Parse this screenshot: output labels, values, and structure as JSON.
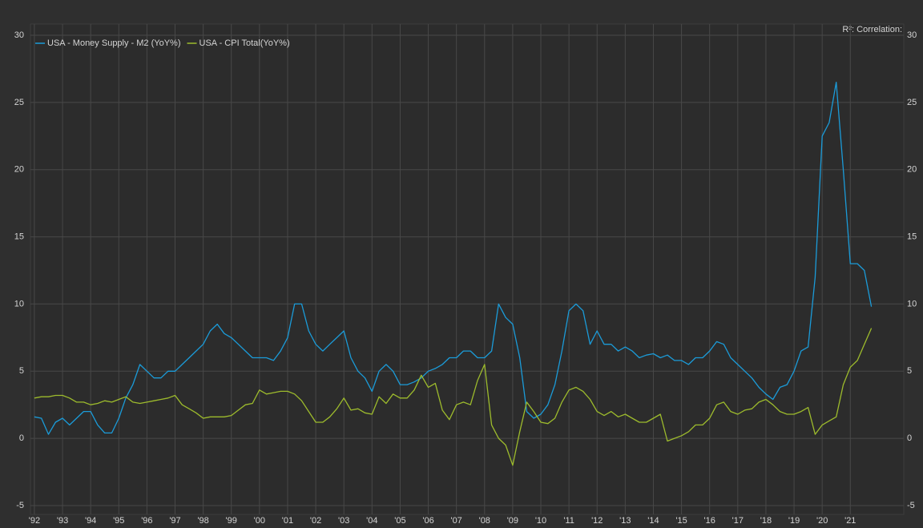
{
  "chart_data": {
    "type": "line",
    "annotation": "R²: Correlation:",
    "x": [
      1992.5,
      1992.75,
      1993,
      1993.25,
      1993.5,
      1993.75,
      1994,
      1994.25,
      1994.5,
      1994.75,
      1995,
      1995.25,
      1995.5,
      1995.75,
      1996,
      1996.25,
      1996.5,
      1996.75,
      1997,
      1997.25,
      1997.5,
      1997.75,
      1998,
      1998.25,
      1998.5,
      1998.75,
      1999,
      1999.25,
      1999.5,
      1999.75,
      2000,
      2000.25,
      2000.5,
      2000.75,
      2001,
      2001.25,
      2001.5,
      2001.75,
      2002,
      2002.25,
      2002.5,
      2002.75,
      2003,
      2003.25,
      2003.5,
      2003.75,
      2004,
      2004.25,
      2004.5,
      2004.75,
      2005,
      2005.25,
      2005.5,
      2005.75,
      2006,
      2006.25,
      2006.5,
      2006.75,
      2007,
      2007.25,
      2007.5,
      2007.75,
      2008,
      2008.25,
      2008.5,
      2008.75,
      2009,
      2009.25,
      2009.5,
      2009.75,
      2010,
      2010.25,
      2010.5,
      2010.75,
      2011,
      2011.25,
      2011.5,
      2011.75,
      2012,
      2012.25,
      2012.5,
      2012.75,
      2013,
      2013.25,
      2013.5,
      2013.75,
      2014,
      2014.25,
      2014.5,
      2014.75,
      2015,
      2015.25,
      2015.5,
      2015.75,
      2016,
      2016.25,
      2016.5,
      2016.75,
      2017,
      2017.25,
      2017.5,
      2017.75,
      2018,
      2018.25,
      2018.5,
      2018.75,
      2019,
      2019.25,
      2019.5,
      2019.75,
      2020,
      2020.25,
      2020.5,
      2020.75,
      2021,
      2021.25,
      2021.5,
      2021.75,
      2022,
      2022.25
    ],
    "series": [
      {
        "name": "USA - Money Supply - M2 (YoY%)",
        "color": "#1b9bd8",
        "values": [
          1.6,
          1.5,
          0.3,
          1.2,
          1.5,
          1.0,
          1.5,
          2.0,
          2.0,
          1.0,
          0.4,
          0.4,
          1.5,
          3.0,
          4.0,
          5.5,
          5.0,
          4.5,
          4.5,
          5.0,
          5.0,
          5.5,
          6.0,
          6.5,
          7.0,
          8.0,
          8.5,
          7.8,
          7.5,
          7.0,
          6.5,
          6.0,
          6.0,
          6.0,
          5.8,
          6.5,
          7.5,
          10.0,
          10.0,
          8.0,
          7.0,
          6.5,
          7.0,
          7.5,
          8.0,
          6.0,
          5.0,
          4.5,
          3.5,
          5.0,
          5.5,
          5.0,
          4.0,
          4.0,
          4.2,
          4.5,
          5.0,
          5.2,
          5.5,
          6.0,
          6.0,
          6.5,
          6.5,
          6.0,
          6.0,
          6.5,
          10.0,
          9.0,
          8.5,
          6.0,
          2.0,
          1.5,
          1.8,
          2.5,
          4.0,
          6.5,
          9.5,
          10.0,
          9.5,
          7.0,
          8.0,
          7.0,
          7.0,
          6.5,
          6.8,
          6.5,
          6.0,
          6.2,
          6.3,
          6.0,
          6.2,
          5.8,
          5.8,
          5.5,
          6.0,
          6.0,
          6.5,
          7.2,
          7.0,
          6.0,
          5.5,
          5.0,
          4.5,
          3.8,
          3.3,
          2.9,
          3.8,
          4.0,
          5.0,
          6.5,
          6.8,
          12.0,
          22.5,
          23.5,
          26.5,
          20.0,
          13.0,
          13.0,
          12.5,
          9.8
        ]
      },
      {
        "name": "USA - CPI Total(YoY%)",
        "color": "#9dbb2c",
        "values": [
          3.0,
          3.1,
          3.1,
          3.2,
          3.2,
          3.0,
          2.7,
          2.7,
          2.5,
          2.6,
          2.8,
          2.7,
          2.9,
          3.1,
          2.7,
          2.6,
          2.7,
          2.8,
          2.9,
          3.0,
          3.2,
          2.5,
          2.2,
          1.9,
          1.5,
          1.6,
          1.6,
          1.6,
          1.7,
          2.1,
          2.5,
          2.6,
          3.6,
          3.3,
          3.4,
          3.5,
          3.5,
          3.3,
          2.8,
          2.0,
          1.2,
          1.2,
          1.6,
          2.2,
          3.0,
          2.1,
          2.2,
          1.9,
          1.8,
          3.1,
          2.6,
          3.3,
          3.0,
          3.0,
          3.6,
          4.7,
          3.8,
          4.1,
          2.1,
          1.4,
          2.5,
          2.7,
          2.5,
          4.3,
          5.5,
          1.0,
          0.0,
          -0.5,
          -2.0,
          0.5,
          2.7,
          2.0,
          1.2,
          1.1,
          1.5,
          2.7,
          3.6,
          3.8,
          3.5,
          2.9,
          2.0,
          1.7,
          2.0,
          1.6,
          1.8,
          1.5,
          1.2,
          1.2,
          1.5,
          1.8,
          -0.2,
          0.0,
          0.2,
          0.5,
          1.0,
          1.0,
          1.5,
          2.5,
          2.7,
          2.0,
          1.8,
          2.1,
          2.2,
          2.7,
          2.9,
          2.5,
          2.0,
          1.8,
          1.8,
          2.0,
          2.3,
          0.3,
          1.0,
          1.3,
          1.6,
          4.0,
          5.3,
          5.8,
          7.0,
          8.2
        ]
      }
    ],
    "xlim": [
      1992.36,
      2023.4
    ],
    "xticks": [
      {
        "value": 1992.5,
        "label": "'92"
      },
      {
        "value": 1993.5,
        "label": "'93"
      },
      {
        "value": 1994.5,
        "label": "'94"
      },
      {
        "value": 1995.5,
        "label": "'95"
      },
      {
        "value": 1996.5,
        "label": "'96"
      },
      {
        "value": 1997.5,
        "label": "'97"
      },
      {
        "value": 1998.5,
        "label": "'98"
      },
      {
        "value": 1999.5,
        "label": "'99"
      },
      {
        "value": 2000.5,
        "label": "'00"
      },
      {
        "value": 2001.5,
        "label": "'01"
      },
      {
        "value": 2002.5,
        "label": "'02"
      },
      {
        "value": 2003.5,
        "label": "'03"
      },
      {
        "value": 2004.5,
        "label": "'04"
      },
      {
        "value": 2005.5,
        "label": "'05"
      },
      {
        "value": 2006.5,
        "label": "'06"
      },
      {
        "value": 2007.5,
        "label": "'07"
      },
      {
        "value": 2008.5,
        "label": "'08"
      },
      {
        "value": 2009.5,
        "label": "'09"
      },
      {
        "value": 2010.5,
        "label": "'10"
      },
      {
        "value": 2011.5,
        "label": "'11"
      },
      {
        "value": 2012.5,
        "label": "'12"
      },
      {
        "value": 2013.5,
        "label": "'13"
      },
      {
        "value": 2014.5,
        "label": "'14"
      },
      {
        "value": 2015.5,
        "label": "'15"
      },
      {
        "value": 2016.5,
        "label": "'16"
      },
      {
        "value": 2017.5,
        "label": "'17"
      },
      {
        "value": 2018.5,
        "label": "'18"
      },
      {
        "value": 2019.5,
        "label": "'19"
      },
      {
        "value": 2020.5,
        "label": "'20"
      },
      {
        "value": 2021.5,
        "label": "'21"
      }
    ],
    "ylim": [
      -5,
      30
    ],
    "yticks": [
      -5,
      0,
      5,
      10,
      15,
      20,
      25,
      30
    ],
    "grid": true
  }
}
